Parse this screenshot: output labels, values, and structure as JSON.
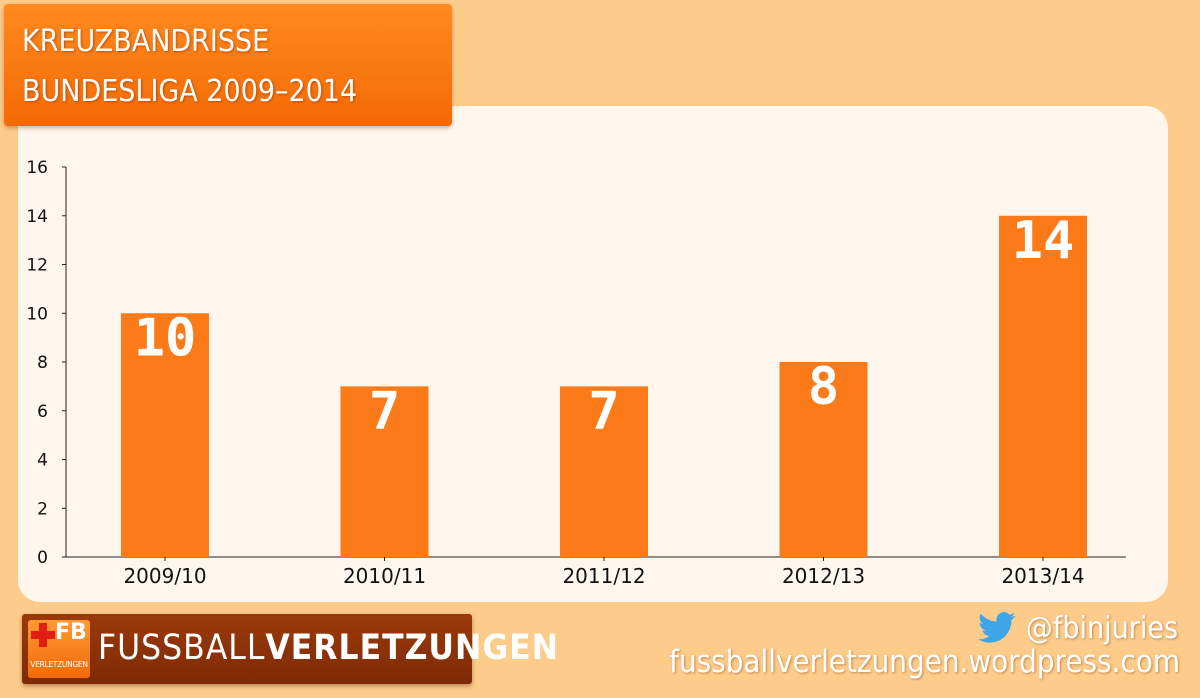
{
  "chart_data": {
    "type": "bar",
    "title_lines": [
      "KREUZBANDRISSE",
      "BUNDESLIGA 2009–2014"
    ],
    "categories": [
      "2009/10",
      "2010/11",
      "2011/12",
      "2012/13",
      "2013/14"
    ],
    "values": [
      10,
      7,
      7,
      8,
      14
    ],
    "data_labels": [
      "10",
      "7",
      "7",
      "8",
      "14"
    ],
    "ylim": [
      0,
      16
    ],
    "yticks": [
      0,
      2,
      4,
      6,
      8,
      10,
      12,
      14,
      16
    ],
    "xlabel": "",
    "ylabel": "",
    "grid": false,
    "legend": "none",
    "bar_color": "#fd7a18",
    "label_color": "#ffffff"
  },
  "footer": {
    "logo_badge": "FB",
    "logo_badge_sub": "VERLETZUNGEN",
    "logo_text_light": "FUSSBALL",
    "logo_text_bold": "VERLETZUNGEN",
    "twitter_icon": "twitter-bird-icon",
    "twitter_handle": "@fbinjuries",
    "website": "fussballverletzungen.wordpress.com"
  },
  "colors": {
    "background": "#fdcb8a",
    "panel": "#fff7ee",
    "title_box": "#f97612",
    "twitter": "#3ea6e6"
  }
}
